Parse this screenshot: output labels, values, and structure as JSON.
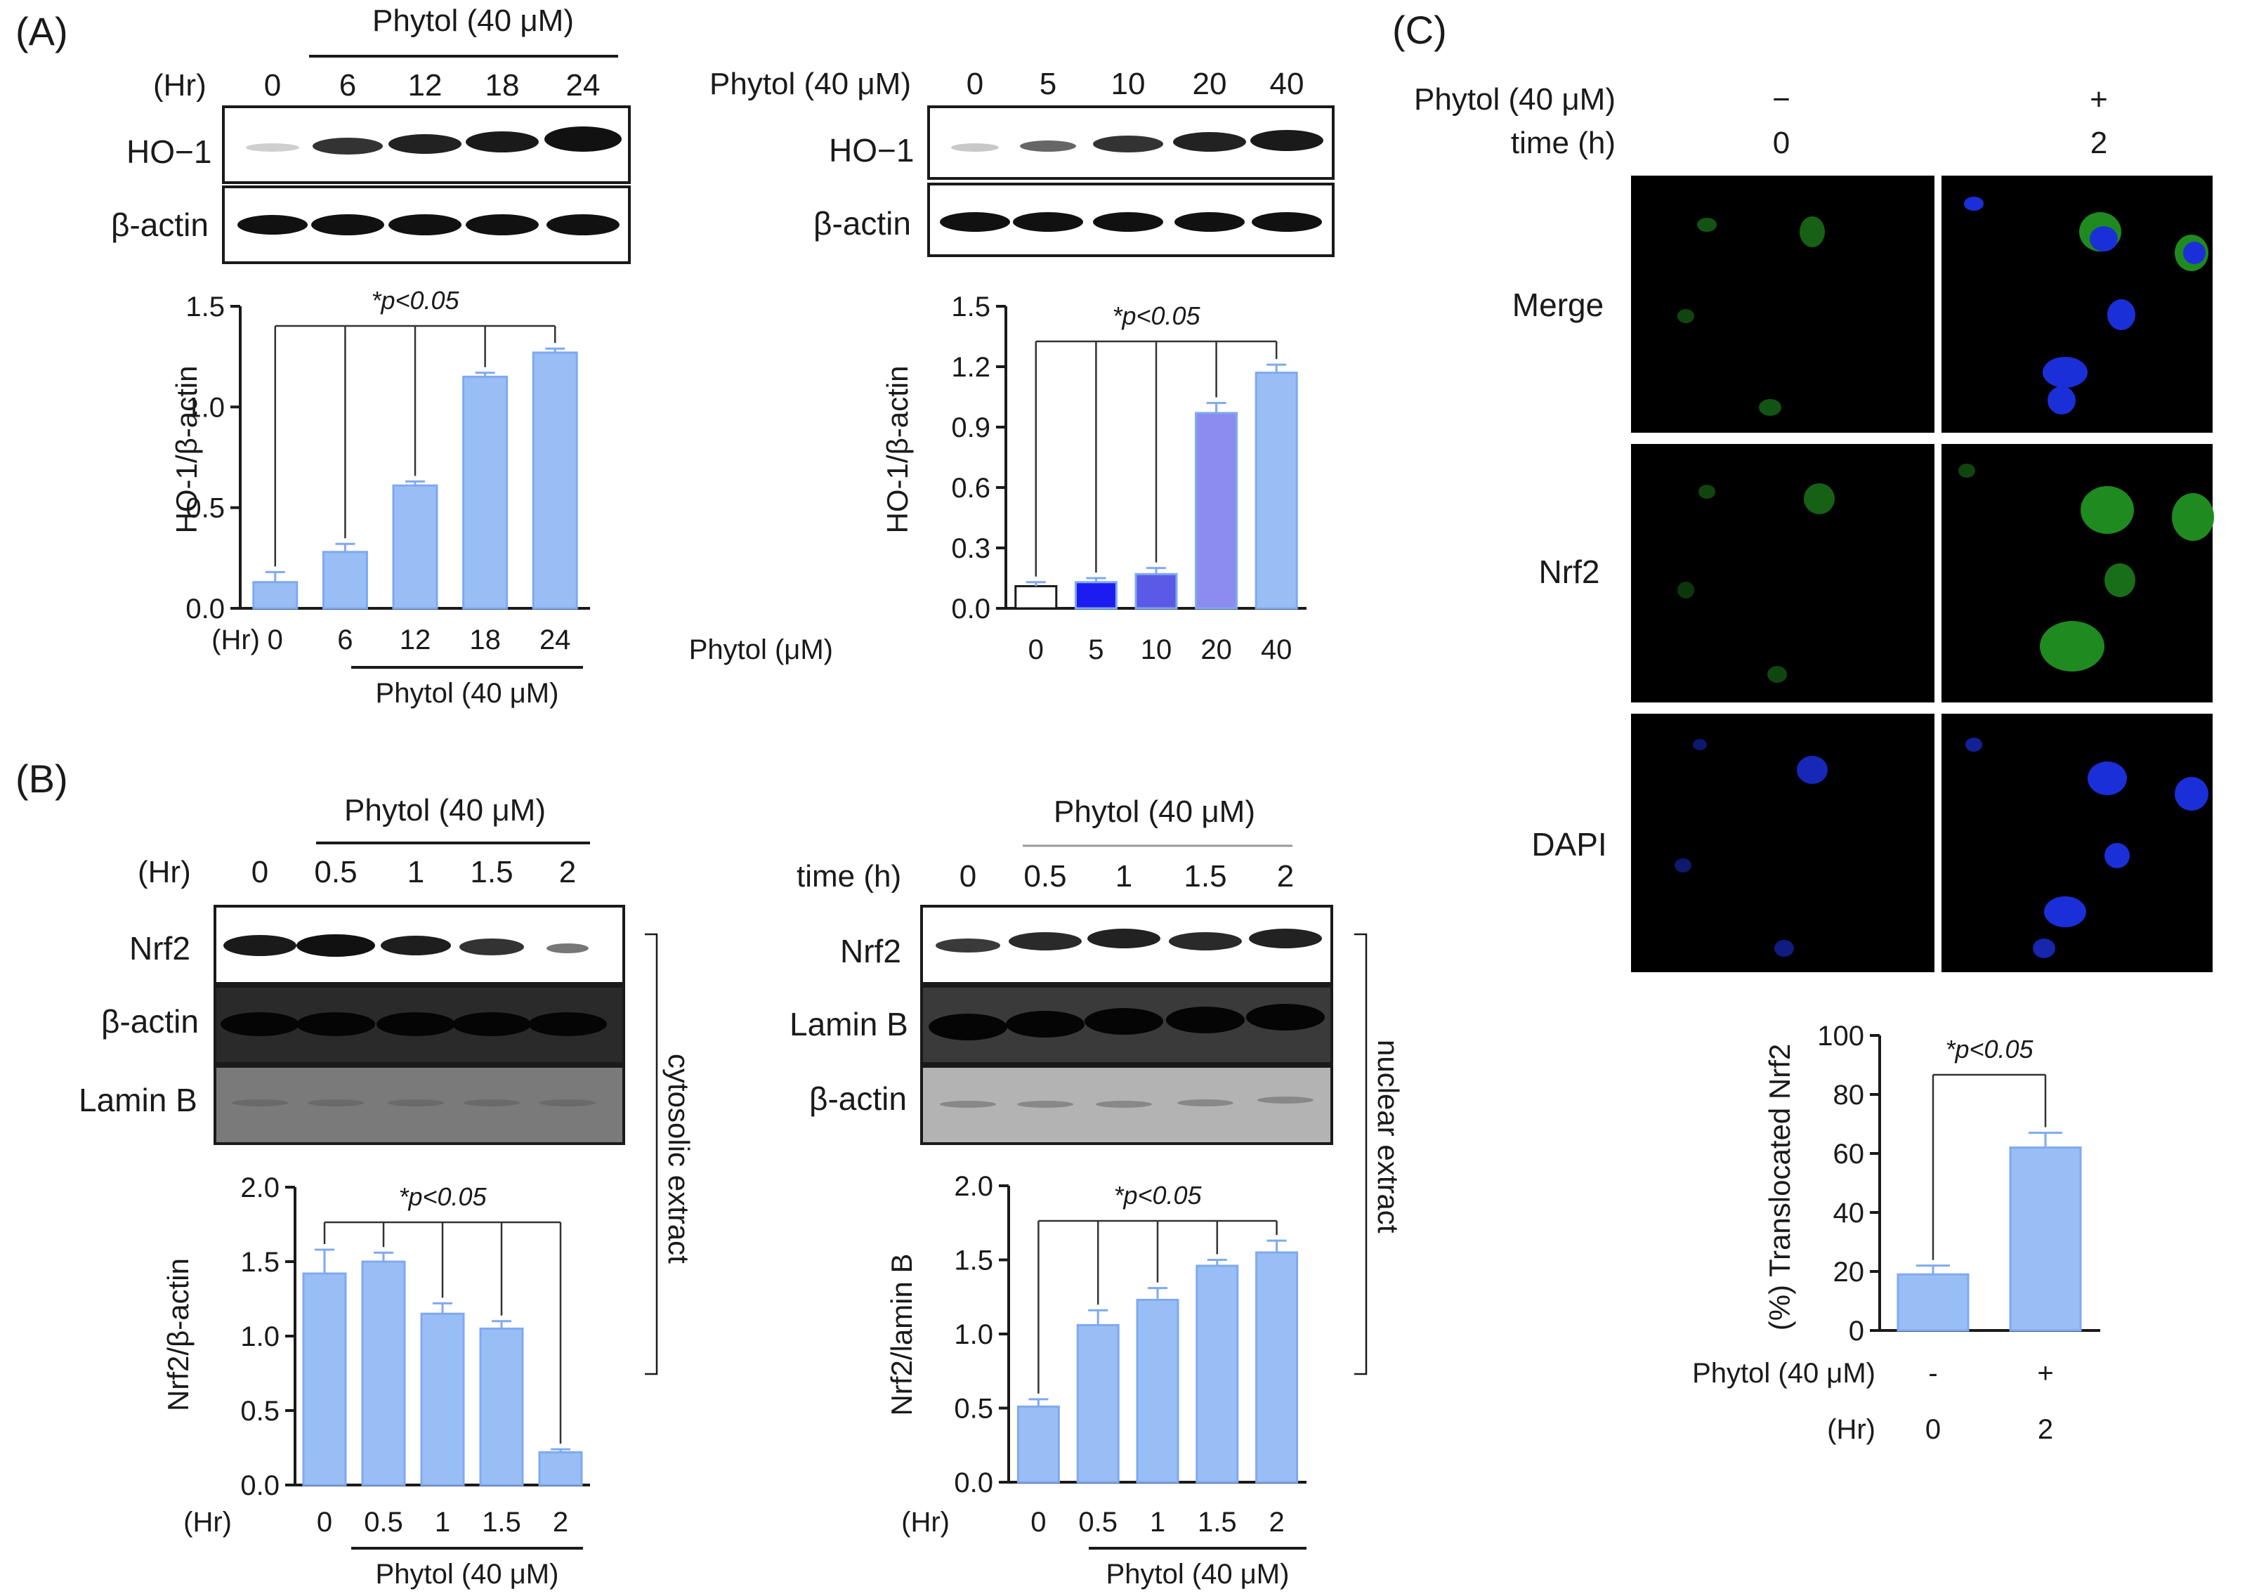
{
  "panels": {
    "A": {
      "letter": "(A)",
      "left": {
        "header": "Phytol (40 μM)",
        "axis_label": "(Hr)",
        "lanes": [
          "0",
          "6",
          "12",
          "18",
          "24"
        ],
        "bands": [
          "HO−1",
          "β-actin"
        ]
      },
      "right": {
        "axis_label": "Phytol (40 μM)",
        "lanes": [
          "0",
          "5",
          "10",
          "20",
          "40"
        ],
        "bands": [
          "HO−1",
          "β-actin"
        ]
      }
    },
    "B": {
      "letter": "(B)",
      "left": {
        "header": "Phytol (40 μM)",
        "axis_label": "(Hr)",
        "lanes": [
          "0",
          "0.5",
          "1",
          "1.5",
          "2"
        ],
        "bands": [
          "Nrf2",
          "β-actin",
          "Lamin B"
        ],
        "side_label": "cytosolic extract"
      },
      "right": {
        "header": "Phytol (40 μM)",
        "axis_label": "time (h)",
        "lanes": [
          "0",
          "0.5",
          "1",
          "1.5",
          "2"
        ],
        "bands": [
          "Nrf2",
          "Lamin B",
          "β-actin"
        ],
        "side_label": "nuclear extract"
      }
    },
    "C": {
      "letter": "(C)",
      "row1_label": "Phytol (40 μM)",
      "row1_values": [
        "−",
        "+"
      ],
      "row2_label": "time (h)",
      "row2_values": [
        "0",
        "2"
      ],
      "image_rows": [
        "Merge",
        "Nrf2",
        "DAPI"
      ]
    }
  },
  "colors": {
    "bar": "#99bef5",
    "bar_edge": "#7fa9f0",
    "bar_white": "#ffffff",
    "bar_blue": "#1c1cf0",
    "bar_mid_blue": "#5a5ae6",
    "bar_periwinkle": "#8b8bf0",
    "axis": "#1a1a1a"
  },
  "chart_data": [
    {
      "id": "A-left",
      "type": "bar",
      "ylabel": "HO-1/β-actin",
      "xlabel_prefix": "(Hr)",
      "group_label": "Phytol (40 μM)",
      "categories": [
        "0",
        "6",
        "12",
        "18",
        "24"
      ],
      "values": [
        0.13,
        0.28,
        0.61,
        1.15,
        1.27
      ],
      "errors": [
        0.05,
        0.04,
        0.02,
        0.02,
        0.02
      ],
      "bar_colors": [
        "#99bef5",
        "#99bef5",
        "#99bef5",
        "#99bef5",
        "#99bef5"
      ],
      "ylim": [
        0,
        1.5
      ],
      "yticks": [
        "0.0",
        "0.5",
        "1.0",
        "1.5"
      ],
      "annotation": "*p<0.05"
    },
    {
      "id": "A-right",
      "type": "bar",
      "ylabel": "HO-1/β-actin",
      "xlabel_prefix": "Phytol (μM)",
      "group_label": "",
      "categories": [
        "0",
        "5",
        "10",
        "20",
        "40"
      ],
      "values": [
        0.11,
        0.13,
        0.17,
        0.97,
        1.17
      ],
      "errors": [
        0.02,
        0.02,
        0.03,
        0.05,
        0.04
      ],
      "bar_colors": [
        "#ffffff",
        "#1c1cf0",
        "#5a5ae6",
        "#8b8bf0",
        "#99bef5"
      ],
      "ylim": [
        0,
        1.5
      ],
      "yticks": [
        "0.0",
        "0.3",
        "0.6",
        "0.9",
        "1.2",
        "1.5"
      ],
      "annotation": "*p<0.05"
    },
    {
      "id": "B-left",
      "type": "bar",
      "ylabel": "Nrf2/β-actin",
      "xlabel_prefix": "(Hr)",
      "group_label": "Phytol (40 μM)",
      "categories": [
        "0",
        "0.5",
        "1",
        "1.5",
        "2"
      ],
      "values": [
        1.42,
        1.5,
        1.15,
        1.05,
        0.22
      ],
      "errors": [
        0.16,
        0.06,
        0.07,
        0.05,
        0.02
      ],
      "bar_colors": [
        "#99bef5",
        "#99bef5",
        "#99bef5",
        "#99bef5",
        "#99bef5"
      ],
      "ylim": [
        0,
        2.0
      ],
      "yticks": [
        "0.0",
        "0.5",
        "1.0",
        "1.5",
        "2.0"
      ],
      "annotation": "*p<0.05"
    },
    {
      "id": "B-right",
      "type": "bar",
      "ylabel": "Nrf2/lamin B",
      "xlabel_prefix": "(Hr)",
      "group_label": "Phytol (40 μM)",
      "categories": [
        "0",
        "0.5",
        "1",
        "1.5",
        "2"
      ],
      "values": [
        0.51,
        1.06,
        1.23,
        1.46,
        1.55
      ],
      "errors": [
        0.05,
        0.1,
        0.08,
        0.04,
        0.08
      ],
      "bar_colors": [
        "#99bef5",
        "#99bef5",
        "#99bef5",
        "#99bef5",
        "#99bef5"
      ],
      "ylim": [
        0,
        2.0
      ],
      "yticks": [
        "0.0",
        "0.5",
        "1.0",
        "1.5",
        "2.0"
      ],
      "annotation": "*p<0.05"
    },
    {
      "id": "C",
      "type": "bar",
      "ylabel": "(%) Translocated Nrf2",
      "categories": [
        "-",
        "+"
      ],
      "categories2": [
        "0",
        "2"
      ],
      "row_labels": [
        "Phytol (40 μM)",
        "(Hr)"
      ],
      "values": [
        19,
        62
      ],
      "errors": [
        3,
        5
      ],
      "bar_colors": [
        "#99bef5",
        "#99bef5"
      ],
      "ylim": [
        0,
        100
      ],
      "yticks": [
        "0",
        "20",
        "40",
        "60",
        "80",
        "100"
      ],
      "annotation": "*p<0.05"
    }
  ]
}
